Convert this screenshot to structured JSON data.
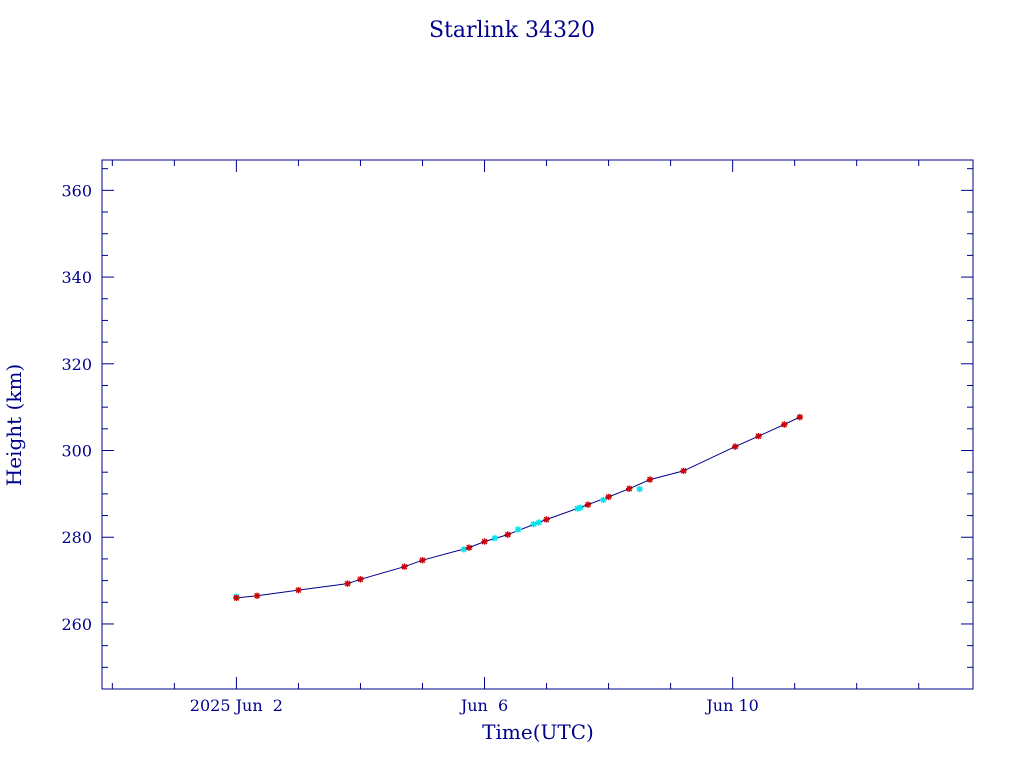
{
  "chart_data": {
    "type": "line",
    "title": "Starlink 34320",
    "xlabel": "Time(UTC)",
    "ylabel": "Height (km)",
    "xlim": [
      "2025-05-30T20:00",
      "2025-06-13T21:00"
    ],
    "ylim": [
      245,
      367
    ],
    "x_tick_labels": [
      {
        "date": "2025-06-02",
        "label": "2025 Jun  2"
      },
      {
        "date": "2025-06-06",
        "label": "Jun  6"
      },
      {
        "date": "2025-06-10",
        "label": "Jun 10"
      }
    ],
    "y_ticks": [
      260,
      280,
      300,
      320,
      340,
      360
    ],
    "grid": false,
    "colors": {
      "axes": "#00008b",
      "line": "#00008b",
      "marker_primary": "#cc0000",
      "marker_secondary": "#00e5ee"
    },
    "series": [
      {
        "marker": "star",
        "color": "#cc0000",
        "x": [
          "2025-06-02T00:00",
          "2025-06-02T08:00",
          "2025-06-03T00:00",
          "2025-06-03T19:00",
          "2025-06-04T00:00",
          "2025-06-04T17:00",
          "2025-06-05T00:00",
          "2025-06-05T18:00",
          "2025-06-06T00:00",
          "2025-06-06T09:00",
          "2025-06-07T00:00",
          "2025-06-07T16:00",
          "2025-06-08T00:00",
          "2025-06-08T08:00",
          "2025-06-08T16:00",
          "2025-06-09T05:00",
          "2025-06-10T01:00",
          "2025-06-10T10:00",
          "2025-06-10T20:00",
          "2025-06-11T02:00"
        ],
        "y": [
          266.0,
          266.5,
          267.8,
          269.3,
          270.3,
          273.2,
          274.7,
          277.6,
          279.0,
          280.6,
          284.1,
          287.5,
          289.3,
          291.2,
          293.3,
          295.3,
          300.9,
          303.3,
          306.0,
          307.7
        ]
      },
      {
        "marker": "star",
        "color": "#00e5ee",
        "x": [
          "2025-06-02T00:00",
          "2025-06-05T16:00",
          "2025-06-06T04:00",
          "2025-06-06T13:00",
          "2025-06-06T19:00",
          "2025-06-06T21:00",
          "2025-06-07T12:00",
          "2025-06-07T13:00",
          "2025-06-07T22:00",
          "2025-06-08T12:00"
        ],
        "y": [
          266.3,
          277.2,
          279.8,
          281.8,
          283.0,
          283.4,
          286.6,
          286.8,
          288.6,
          291.1
        ]
      }
    ]
  }
}
